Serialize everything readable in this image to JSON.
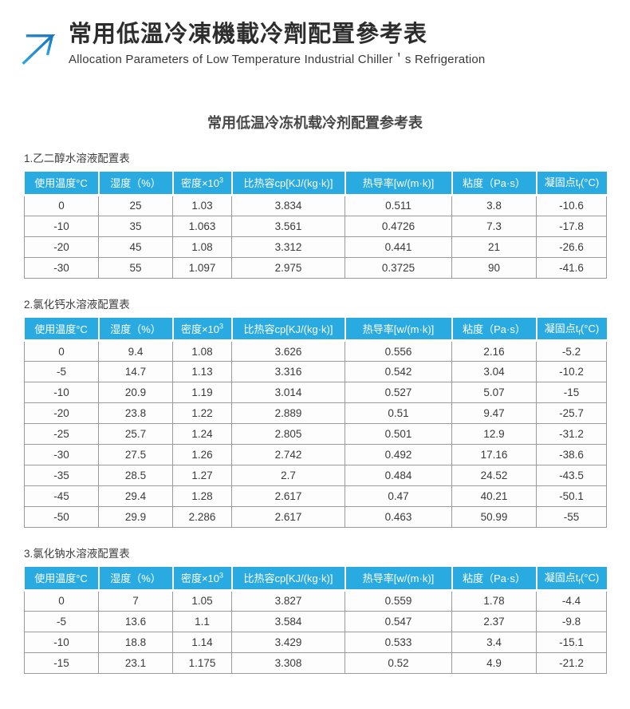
{
  "page_header": {
    "logo_icon": "arrow-up-right-icon",
    "title": "常用低溫冷凍機載冷劑配置參考表",
    "subtitle": "Allocation Parameters of Low Temperature Industrial Chiller＇s Refrigeration"
  },
  "main_title": "常用低温冷冻机载冷剂配置参考表",
  "colors": {
    "table_header_blue": "#29abe2",
    "arrow_blue_dark": "#1b75bc",
    "arrow_blue_light": "#2aa5dd"
  },
  "columns": [
    {
      "text": "使用温度°C"
    },
    {
      "text": "湿度（%）"
    },
    {
      "text": "密度×10",
      "sup": "3"
    },
    {
      "text": "比热容cp[KJ/(kg·k)]"
    },
    {
      "text": "热导率[w/(m·k)]"
    },
    {
      "text": "粘度（Pa·s）"
    },
    {
      "text": "凝固点t",
      "sub": "f",
      "tail": "(°C)"
    }
  ],
  "sections": [
    {
      "label": "1.乙二醇水溶液配置表",
      "rows": [
        [
          "0",
          "25",
          "1.03",
          "3.834",
          "0.511",
          "3.8",
          "-10.6"
        ],
        [
          "-10",
          "35",
          "1.063",
          "3.561",
          "0.4726",
          "7.3",
          "-17.8"
        ],
        [
          "-20",
          "45",
          "1.08",
          "3.312",
          "0.441",
          "21",
          "-26.6"
        ],
        [
          "-30",
          "55",
          "1.097",
          "2.975",
          "0.3725",
          "90",
          "-41.6"
        ]
      ]
    },
    {
      "label": "2.氯化钙水溶液配置表",
      "rows": [
        [
          "0",
          "9.4",
          "1.08",
          "3.626",
          "0.556",
          "2.16",
          "-5.2"
        ],
        [
          "-5",
          "14.7",
          "1.13",
          "3.316",
          "0.542",
          "3.04",
          "-10.2"
        ],
        [
          "-10",
          "20.9",
          "1.19",
          "3.014",
          "0.527",
          "5.07",
          "-15"
        ],
        [
          "-20",
          "23.8",
          "1.22",
          "2.889",
          "0.51",
          "9.47",
          "-25.7"
        ],
        [
          "-25",
          "25.7",
          "1.24",
          "2.805",
          "0.501",
          "12.9",
          "-31.2"
        ],
        [
          "-30",
          "27.5",
          "1.26",
          "2.742",
          "0.492",
          "17.16",
          "-38.6"
        ],
        [
          "-35",
          "28.5",
          "1.27",
          "2.7",
          "0.484",
          "24.52",
          "-43.5"
        ],
        [
          "-45",
          "29.4",
          "1.28",
          "2.617",
          "0.47",
          "40.21",
          "-50.1"
        ],
        [
          "-50",
          "29.9",
          "2.286",
          "2.617",
          "0.463",
          "50.99",
          "-55"
        ]
      ]
    },
    {
      "label": "3.氯化钠水溶液配置表",
      "rows": [
        [
          "0",
          "7",
          "1.05",
          "3.827",
          "0.559",
          "1.78",
          "-4.4"
        ],
        [
          "-5",
          "13.6",
          "1.1",
          "3.584",
          "0.547",
          "2.37",
          "-9.8"
        ],
        [
          "-10",
          "18.8",
          "1.14",
          "3.429",
          "0.533",
          "3.4",
          "-15.1"
        ],
        [
          "-15",
          "23.1",
          "1.175",
          "3.308",
          "0.52",
          "4.9",
          "-21.2"
        ]
      ]
    }
  ]
}
